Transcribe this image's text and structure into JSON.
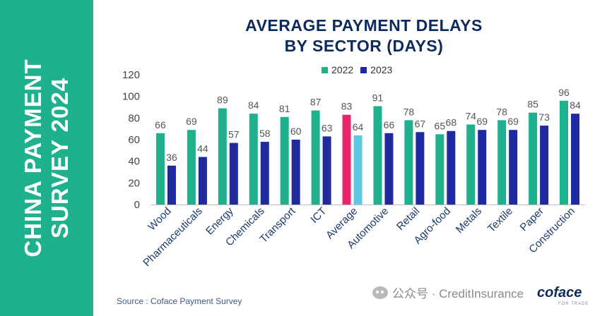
{
  "side_title": {
    "line1": "CHINA PAYMENT",
    "line2": "SURVEY 2024"
  },
  "chart_data": {
    "type": "bar",
    "title_line1": "AVERAGE PAYMENT DELAYS",
    "title_line2": "BY SECTOR (DAYS)",
    "xlabel": "",
    "ylabel": "",
    "ylim": [
      0,
      120
    ],
    "yticks": [
      0,
      20,
      40,
      60,
      80,
      100,
      120
    ],
    "categories": [
      "Wood",
      "Pharmaceuticals",
      "Energy",
      "Chemicals",
      "Transport",
      "ICT",
      "Average",
      "Automotive",
      "Retail",
      "Agro-food",
      "Metals",
      "Textile",
      "Paper",
      "Construction"
    ],
    "series": [
      {
        "name": "2022",
        "color": "#1fb08e",
        "values": [
          66,
          69,
          89,
          84,
          81,
          87,
          83,
          91,
          78,
          65,
          74,
          78,
          85,
          96
        ]
      },
      {
        "name": "2023",
        "color": "#1f2aa0",
        "values": [
          36,
          44,
          57,
          58,
          60,
          63,
          64,
          66,
          67,
          68,
          69,
          69,
          73,
          84
        ]
      }
    ],
    "highlight": {
      "category": "Average",
      "colors": [
        "#e8246c",
        "#5ec8e0"
      ]
    },
    "legend_position": "top",
    "grid": false
  },
  "source": "Source : Coface Payment Survey",
  "watermark": "公众号 · CreditInsurance",
  "logo": {
    "name": "coface",
    "tagline": "FOR TRADE"
  }
}
